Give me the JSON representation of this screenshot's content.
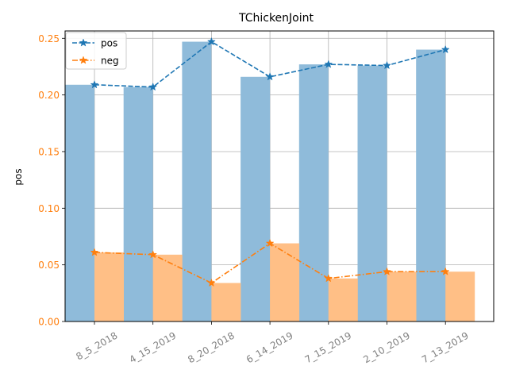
{
  "chart_data": {
    "type": "bar",
    "title": "TChickenJoint",
    "xlabel": "",
    "ylabel": "pos",
    "ylim": [
      0,
      0.25
    ],
    "yticks": [
      "0.00",
      "0.05",
      "0.10",
      "0.15",
      "0.20",
      "0.25"
    ],
    "categories": [
      "8_5_2018",
      "4_15_2019",
      "8_20_2018",
      "6_14_2019",
      "7_15_2019",
      "2_10_2019",
      "7_13_2019"
    ],
    "series": [
      {
        "name": "pos",
        "values": [
          0.209,
          0.207,
          0.247,
          0.216,
          0.227,
          0.226,
          0.24
        ],
        "color": "#1f77b4",
        "bar_color": "#8fbbda",
        "line_style": "dashed",
        "marker": "star"
      },
      {
        "name": "neg",
        "values": [
          0.061,
          0.059,
          0.034,
          0.069,
          0.038,
          0.044,
          0.044
        ],
        "color": "#ff7f0e",
        "bar_color": "#ffbf86",
        "line_style": "dash-dot",
        "marker": "star"
      }
    ],
    "grid": true,
    "legend_position": "top-left",
    "ytick_color": "#ff7f0e",
    "xtick_color": "#808080"
  }
}
